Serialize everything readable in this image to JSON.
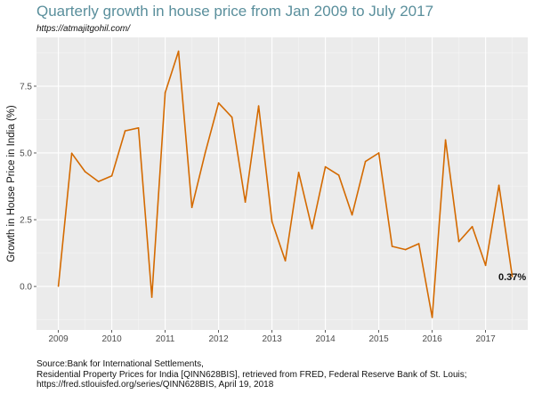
{
  "chart_data": {
    "type": "line",
    "title": "Quarterly growth in house price from Jan 2009 to July 2017",
    "subtitle": "https://atmajitgohil.com/",
    "xlabel": "",
    "ylabel": "Growth in House Price in India (%)",
    "x_tick_labels": [
      "2009",
      "2010",
      "2011",
      "2012",
      "2013",
      "2014",
      "2015",
      "2016",
      "2017"
    ],
    "y_tick_labels": [
      "0.0",
      "2.5",
      "5.0",
      "7.5"
    ],
    "y_ticks": [
      0,
      2.5,
      5.0,
      7.5
    ],
    "xlim": [
      2008.59,
      2017.79
    ],
    "ylim": [
      -1.63,
      9.33
    ],
    "grid": true,
    "line_color": "#d46a00",
    "background": "#ebebeb",
    "x": [
      2009.0,
      2009.25,
      2009.5,
      2009.75,
      2010.0,
      2010.25,
      2010.5,
      2010.75,
      2011.0,
      2011.25,
      2011.5,
      2011.75,
      2012.0,
      2012.25,
      2012.5,
      2012.75,
      2013.0,
      2013.25,
      2013.5,
      2013.75,
      2014.0,
      2014.25,
      2014.5,
      2014.75,
      2015.0,
      2015.25,
      2015.5,
      2015.75,
      2016.0,
      2016.25,
      2016.5,
      2016.75,
      2017.0,
      2017.25,
      2017.5
    ],
    "values": [
      0.01,
      4.99,
      4.3,
      3.93,
      4.14,
      5.83,
      5.94,
      -0.4,
      7.26,
      8.81,
      2.96,
      5.01,
      6.87,
      6.34,
      3.16,
      6.76,
      2.43,
      0.96,
      4.27,
      2.16,
      4.48,
      4.17,
      2.68,
      4.68,
      5.0,
      1.5,
      1.38,
      1.6,
      -1.16,
      5.49,
      1.68,
      2.24,
      0.79,
      3.79,
      0.37
    ],
    "annotation": "0.37%",
    "caption": [
      "Source:Bank for International Settlements,",
      "Residential Property Prices for India [QINN628BIS], retrieved from FRED, Federal Reserve Bank of St. Louis;",
      "https://fred.stlouisfed.org/series/QINN628BIS, April 19, 2018"
    ]
  }
}
